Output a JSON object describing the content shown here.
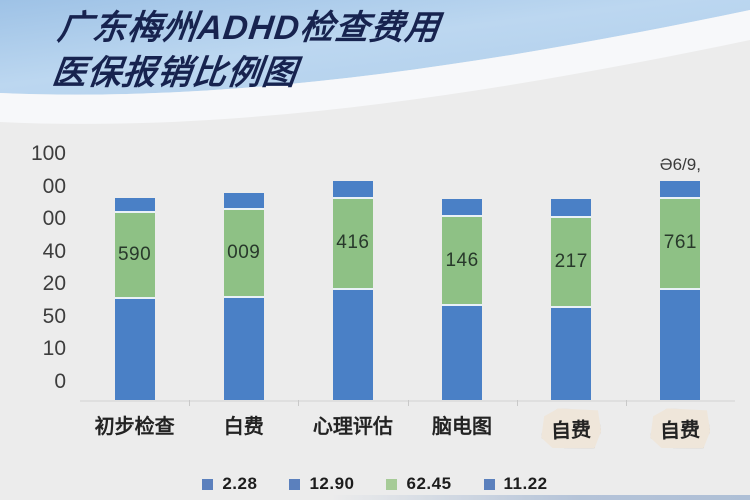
{
  "title": {
    "line1": "广东梅州ADHD检查费用",
    "line2": "医保报销比例图"
  },
  "chart_data": {
    "type": "bar",
    "stacked": true,
    "title": "广东梅州ADHD检查费用 医保报销比例图",
    "grid": false,
    "legend_position": "bottom",
    "y_axis": {
      "tick_labels": [
        "100",
        "00",
        "00",
        "40",
        "20",
        "50",
        "10",
        "0"
      ],
      "ylim": [
        0,
        100
      ]
    },
    "categories": [
      "初步检查",
      "白费",
      "心理评估",
      "脑电图",
      "自费",
      "自费"
    ],
    "bars": [
      {
        "category": "初步检查",
        "segment_label": "590",
        "bottom_blue": 42,
        "green": 35,
        "top_blue": 5.5,
        "above_label": ""
      },
      {
        "category": "白费",
        "segment_label": "009",
        "bottom_blue": 42.5,
        "green": 36,
        "top_blue": 6,
        "above_label": ""
      },
      {
        "category": "心理评估",
        "segment_label": "416",
        "bottom_blue": 46,
        "green": 37,
        "top_blue": 6.5,
        "above_label": ""
      },
      {
        "category": "脑电图",
        "segment_label": "146",
        "bottom_blue": 39,
        "green": 36.5,
        "top_blue": 6.5,
        "above_label": ""
      },
      {
        "category": "自费",
        "segment_label": "217",
        "bottom_blue": 38.5,
        "green": 36.5,
        "top_blue": 7,
        "above_label": ""
      },
      {
        "category": "自费",
        "segment_label": "761",
        "bottom_blue": 46,
        "green": 37,
        "top_blue": 6.5,
        "above_label": "Ə6/9,"
      }
    ],
    "paper_note_category_indexes": [
      4,
      5
    ],
    "legend": [
      {
        "label": "2.28",
        "color": "#5b80bd"
      },
      {
        "label": "12.90",
        "color": "#5b80bd"
      },
      {
        "label": "62.45",
        "color": "#a6cb97"
      },
      {
        "label": "11.22",
        "color": "#5b80bd"
      }
    ],
    "colors": {
      "bar_blue": "#4a80c6",
      "bar_green": "#8ec185",
      "segment_gap": "#e9f1f7",
      "title_navy": "#17234f",
      "header_sky_light": "#d4e6f7",
      "header_sky_deep": "#8fb8e0",
      "background": "#ececec"
    }
  }
}
